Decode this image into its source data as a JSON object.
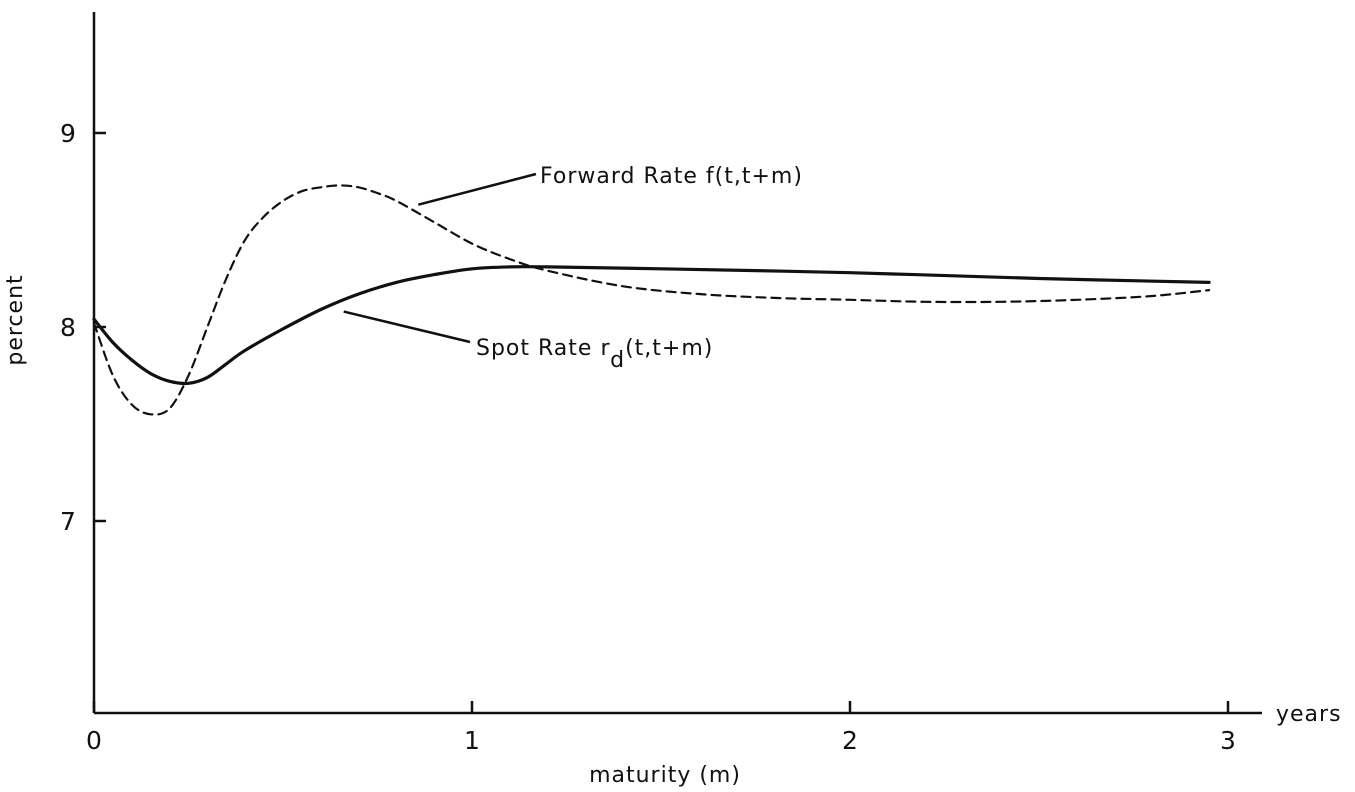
{
  "chart_data": {
    "type": "line",
    "title": "",
    "xlabel": "maturity  (m)",
    "ylabel": "percent",
    "x_unit_label": "years",
    "xlim": [
      0,
      3.15
    ],
    "ylim": [
      6.0,
      9.7
    ],
    "x_ticks": [
      0,
      1,
      2,
      3
    ],
    "x_tick_labels": [
      "0",
      "1",
      "2",
      "3"
    ],
    "y_ticks": [
      7,
      8,
      9
    ],
    "y_tick_labels": [
      "7",
      "8",
      "9"
    ],
    "grid": false,
    "legend": "none",
    "series": [
      {
        "name": "Spot Rate r_d(t,t+m)",
        "style": "solid",
        "x": [
          0,
          0.05,
          0.1,
          0.15,
          0.2,
          0.25,
          0.3,
          0.35,
          0.4,
          0.5,
          0.6,
          0.7,
          0.8,
          0.9,
          1.0,
          1.1,
          1.2,
          1.5,
          2.0,
          2.5,
          2.95
        ],
        "y": [
          8.04,
          7.92,
          7.83,
          7.76,
          7.72,
          7.71,
          7.74,
          7.81,
          7.88,
          7.99,
          8.09,
          8.17,
          8.23,
          8.27,
          8.3,
          8.31,
          8.31,
          8.3,
          8.28,
          8.25,
          8.23
        ]
      },
      {
        "name": "Forward Rate f(t,t+m)",
        "style": "dashed",
        "x": [
          0,
          0.05,
          0.1,
          0.15,
          0.2,
          0.25,
          0.3,
          0.35,
          0.4,
          0.45,
          0.5,
          0.55,
          0.6,
          0.65,
          0.7,
          0.75,
          0.8,
          0.9,
          1.0,
          1.1,
          1.2,
          1.4,
          1.6,
          1.8,
          2.0,
          2.2,
          2.4,
          2.6,
          2.8,
          2.95
        ],
        "y": [
          8.02,
          7.75,
          7.6,
          7.55,
          7.58,
          7.75,
          8.0,
          8.25,
          8.45,
          8.57,
          8.65,
          8.7,
          8.72,
          8.73,
          8.72,
          8.69,
          8.65,
          8.54,
          8.43,
          8.35,
          8.29,
          8.21,
          8.17,
          8.15,
          8.14,
          8.13,
          8.13,
          8.14,
          8.16,
          8.19
        ]
      }
    ],
    "annotations": [
      {
        "text_main": "Forward Rate f(t,t+m)",
        "points_to": "Forward Rate f(t,t+m)",
        "at": [
          0.85,
          8.62
        ]
      },
      {
        "text_main": "Spot Rate r",
        "text_sub": "d",
        "text_after": "(t,t+m)",
        "points_to": "Spot Rate r_d(t,t+m)",
        "at": [
          0.65,
          8.09
        ]
      }
    ]
  }
}
